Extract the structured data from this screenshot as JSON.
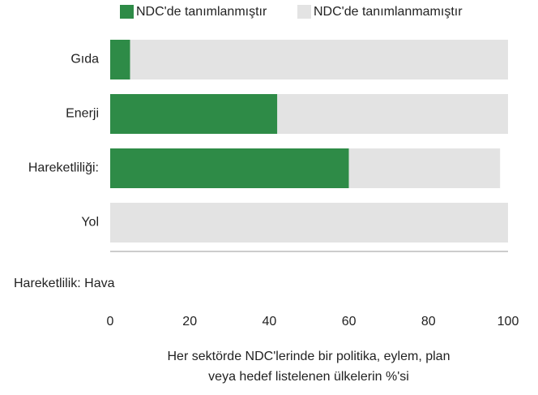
{
  "chart_data": {
    "type": "stacked_barh",
    "categories": [
      "Gıda",
      "Enerji",
      "Hareketliliği:",
      "Yol"
    ],
    "series": [
      {
        "name": "NDC'de tanımlanmıştır",
        "color": "#2e8b47",
        "values": [
          5,
          42,
          60,
          0
        ]
      },
      {
        "name": "NDC'de tanımlanmamıştır",
        "color": "#e3e3e3",
        "values": [
          95,
          58,
          38,
          100
        ]
      }
    ],
    "annotation": "Hareketlilik: Hava",
    "xlabel": [
      "Her sektörde NDC'lerinde bir politika, eylem, plan",
      "veya hedef listelenen ülkelerin %'si"
    ],
    "xlim": [
      0,
      100
    ],
    "xticks": [
      0,
      20,
      40,
      60,
      80,
      100
    ],
    "legend": "top"
  }
}
